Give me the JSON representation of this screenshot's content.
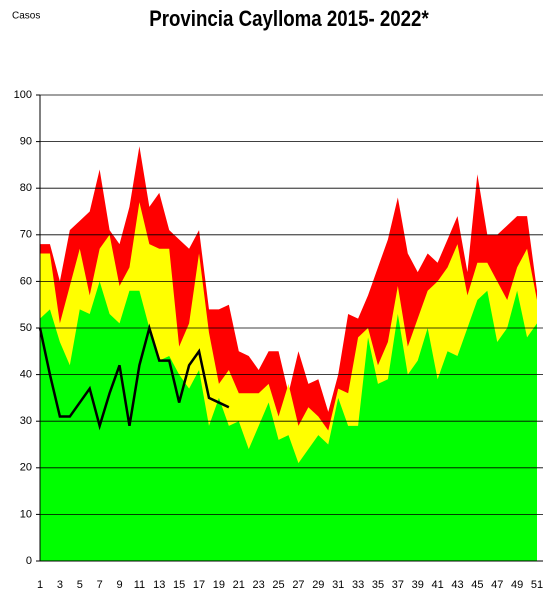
{
  "chart_data": {
    "type": "area",
    "title": "Provincia Caylloma 2015- 2022*",
    "y_label": "Casos",
    "categories": [
      1,
      null,
      3,
      null,
      5,
      null,
      7,
      null,
      9,
      null,
      11,
      null,
      13,
      null,
      15,
      null,
      17,
      null,
      19,
      null,
      21,
      null,
      23,
      null,
      25,
      null,
      27,
      null,
      29,
      null,
      31,
      null,
      33,
      null,
      35,
      null,
      37,
      null,
      39,
      null,
      41,
      null,
      43,
      null,
      45,
      null,
      47,
      null,
      49,
      null,
      51
    ],
    "series": [
      {
        "color": "#ff0000",
        "values": [
          68,
          68,
          60,
          71,
          73,
          75,
          84,
          71,
          68,
          76,
          89,
          76,
          79,
          71,
          69,
          67,
          71,
          54,
          54,
          55,
          45,
          44,
          41,
          45,
          45,
          36,
          45,
          38,
          39,
          32,
          40,
          53,
          52,
          57,
          63,
          69,
          78,
          66,
          62,
          66,
          64,
          69,
          74,
          62,
          83,
          70,
          70,
          72,
          74,
          74,
          58
        ]
      },
      {
        "color": "#ffff00",
        "values": [
          66,
          66,
          51,
          59,
          67,
          57,
          67,
          70,
          59,
          63,
          77,
          68,
          67,
          67,
          46,
          51,
          66,
          49,
          38,
          41,
          36,
          36,
          36,
          38,
          31,
          38,
          29,
          33,
          31,
          28,
          37,
          36,
          48,
          50,
          42,
          47,
          59,
          46,
          52,
          58,
          60,
          63,
          68,
          57,
          64,
          64,
          60,
          56,
          63,
          67,
          56
        ]
      },
      {
        "color": "#00ff00",
        "values": [
          52,
          54,
          47,
          42,
          54,
          53,
          60,
          53,
          51,
          58,
          58,
          50,
          43,
          44,
          40,
          37,
          41,
          29,
          35,
          29,
          30,
          24,
          29,
          34,
          26,
          27,
          21,
          24,
          27,
          25,
          35,
          29,
          29,
          48,
          38,
          39,
          53,
          40,
          43,
          50,
          39,
          45,
          44,
          50,
          56,
          58,
          47,
          50,
          58,
          48,
          51
        ]
      },
      {
        "type": "line",
        "color": "#000000",
        "values": [
          50,
          40,
          31,
          31,
          34,
          37,
          29,
          36,
          42,
          29,
          42,
          50,
          43,
          43,
          34,
          42,
          45,
          35,
          34,
          33,
          null,
          null,
          null,
          null,
          null,
          null,
          null,
          null,
          null,
          null,
          null,
          null,
          null,
          null,
          null,
          null,
          null,
          null,
          null,
          null,
          null,
          null,
          null,
          null,
          null,
          null,
          null,
          null,
          null,
          null,
          null
        ]
      }
    ],
    "ylim": [
      0,
      100
    ],
    "yticks": [
      0,
      10,
      20,
      30,
      40,
      50,
      60,
      70,
      80,
      90,
      100
    ],
    "grid": true
  }
}
